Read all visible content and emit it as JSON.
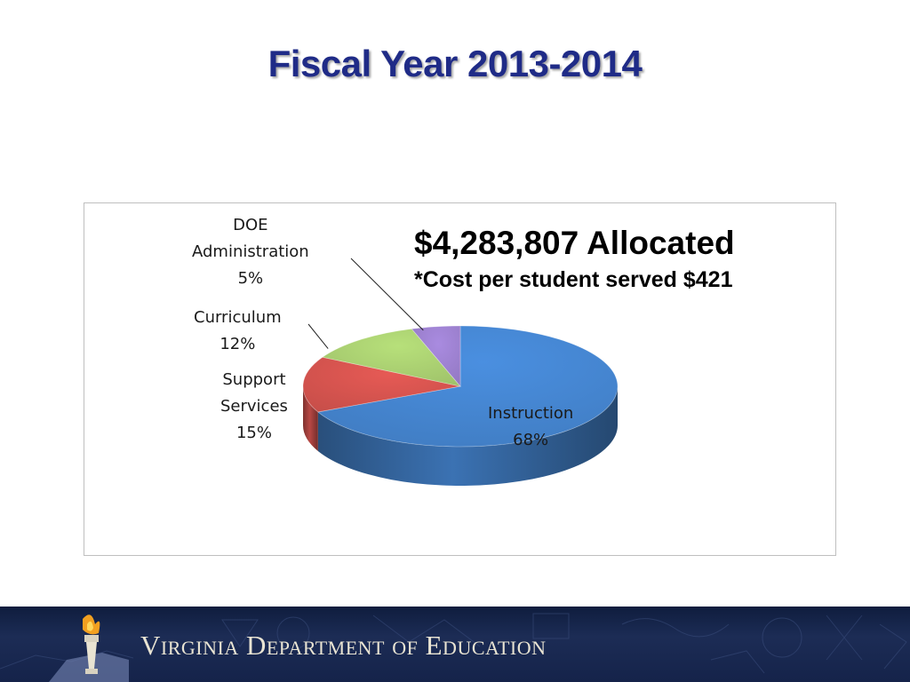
{
  "slide": {
    "title": "Fiscal Year 2013-2014"
  },
  "headline": "$4,283,807 Allocated",
  "subline": "*Cost per student served $421",
  "chart_data": {
    "type": "pie",
    "style": "3d",
    "slices": [
      {
        "name": "Instruction",
        "percent_label": "68%",
        "value": 68,
        "color": "#4a8fe0"
      },
      {
        "name": "Support Services",
        "percent_label": "15%",
        "value": 15,
        "color": "#e65a55"
      },
      {
        "name": "Curriculum",
        "percent_label": "12%",
        "value": 12,
        "color": "#b7e07a"
      },
      {
        "name": "DOE Administration",
        "percent_label": "5%",
        "value": 5,
        "color": "#a98be0"
      }
    ],
    "labels": {
      "doe": [
        "DOE",
        "Administration",
        "5%"
      ],
      "curriculum": [
        "Curriculum",
        "12%"
      ],
      "support": [
        "Support",
        "Services",
        "15%"
      ],
      "instruction": [
        "Instruction",
        "68%"
      ]
    },
    "legend": "none"
  },
  "footer": {
    "organization": "Virginia Department of Education",
    "logo_icon": "torch-icon",
    "colors": {
      "band": "#1c2c55",
      "text": "#e9e4d3"
    }
  },
  "colors": {
    "title": "#1f2b87",
    "frame_border": "#bfbfbf"
  }
}
